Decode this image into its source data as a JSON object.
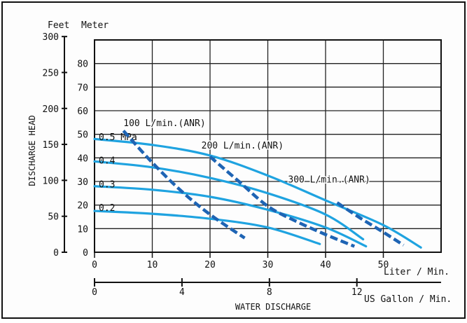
{
  "chart_data": {
    "type": "line",
    "primary_axis_left": {
      "label": "Feet",
      "ticks": [
        0,
        50,
        100,
        150,
        200,
        250,
        300
      ],
      "range": [
        0,
        300
      ]
    },
    "primary_axis_right": {
      "label": "Meter",
      "ticks": [
        0,
        10,
        20,
        30,
        40,
        50,
        60,
        70,
        80
      ],
      "range": [
        0,
        90
      ]
    },
    "y_axis_title": "DISCHARGE  HEAD",
    "x_axis_liter": {
      "label": "Liter / Min.",
      "ticks": [
        0,
        10,
        20,
        30,
        40,
        50
      ],
      "range": [
        0,
        60
      ]
    },
    "x_axis_gallon": {
      "label": "US Gallon / Min.",
      "ticks": [
        0,
        4,
        8,
        12
      ],
      "range": [
        0,
        15.85
      ]
    },
    "x_axis_title": "WATER DISCHARGE",
    "grid": true,
    "colors": {
      "pressure_line": "#1fa3e0",
      "air_line": "#1e64b4",
      "frame": "#111111",
      "background": "#ffffff"
    },
    "pressure_series": [
      {
        "name": "0.2",
        "label_y": 19,
        "points": [
          [
            0,
            17.5
          ],
          [
            10,
            16.3
          ],
          [
            20,
            14.2
          ],
          [
            30,
            10.5
          ],
          [
            39,
            3.5
          ]
        ]
      },
      {
        "name": "0.3",
        "label_y": 29,
        "points": [
          [
            0,
            28
          ],
          [
            10,
            26.5
          ],
          [
            20,
            23.5
          ],
          [
            30,
            18
          ],
          [
            40,
            10.5
          ],
          [
            47,
            2.5
          ]
        ]
      },
      {
        "name": "0.4",
        "label_y": 39,
        "points": [
          [
            0,
            38.5
          ],
          [
            10,
            36
          ],
          [
            20,
            31.5
          ],
          [
            30,
            25
          ],
          [
            40,
            16
          ],
          [
            46.5,
            5.5
          ]
        ]
      },
      {
        "name": "0.5 MPa",
        "label_y": 49,
        "points": [
          [
            0,
            48
          ],
          [
            10,
            45.5
          ],
          [
            20,
            41
          ],
          [
            30,
            32.5
          ],
          [
            40,
            22
          ],
          [
            50,
            11.5
          ],
          [
            56.5,
            2
          ]
        ]
      }
    ],
    "air_consumption_series": [
      {
        "name": "100 L/min.(ANR)",
        "points": [
          [
            5,
            51.5
          ],
          [
            10,
            38
          ],
          [
            15,
            26
          ],
          [
            20,
            16
          ],
          [
            26,
            6
          ]
        ]
      },
      {
        "name": "200 L/min.(ANR)",
        "points": [
          [
            20,
            40.5
          ],
          [
            25,
            30
          ],
          [
            30,
            19.5
          ],
          [
            35,
            13
          ],
          [
            40,
            7.5
          ],
          [
            45,
            2.5
          ]
        ]
      },
      {
        "name": "300 L/min.(ANR)",
        "points": [
          [
            42,
            21
          ],
          [
            46,
            14.5
          ],
          [
            50,
            8.5
          ],
          [
            53.5,
            3
          ]
        ]
      }
    ]
  }
}
